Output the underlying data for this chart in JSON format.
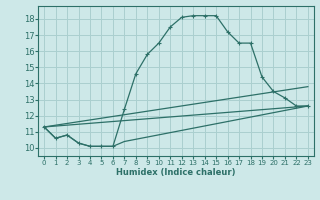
{
  "xlabel": "Humidex (Indice chaleur)",
  "xlim": [
    -0.5,
    23.5
  ],
  "ylim": [
    9.5,
    18.8
  ],
  "xticks": [
    0,
    1,
    2,
    3,
    4,
    5,
    6,
    7,
    8,
    9,
    10,
    11,
    12,
    13,
    14,
    15,
    16,
    17,
    18,
    19,
    20,
    21,
    22,
    23
  ],
  "yticks": [
    10,
    11,
    12,
    13,
    14,
    15,
    16,
    17,
    18
  ],
  "bg_color": "#cde8e8",
  "line_color": "#2d7068",
  "grid_color": "#aacfcf",
  "line1_x": [
    0,
    1,
    2,
    3,
    4,
    5,
    6,
    7,
    8,
    9,
    10,
    11,
    12,
    13,
    14,
    15,
    16,
    17,
    18,
    19,
    20,
    21,
    22,
    23
  ],
  "line1_y": [
    11.3,
    10.6,
    10.8,
    10.3,
    10.1,
    10.1,
    10.1,
    12.4,
    14.6,
    15.8,
    16.5,
    17.5,
    18.1,
    18.2,
    18.2,
    18.2,
    17.2,
    16.5,
    16.5,
    14.4,
    13.5,
    13.1,
    12.6,
    12.6
  ],
  "line2_x": [
    0,
    1,
    2,
    3,
    4,
    5,
    6,
    7,
    23
  ],
  "line2_y": [
    11.3,
    10.6,
    10.8,
    10.3,
    10.1,
    10.1,
    10.1,
    10.4,
    12.6
  ],
  "line3_x": [
    0,
    23
  ],
  "line3_y": [
    11.3,
    13.8
  ],
  "line4_x": [
    0,
    23
  ],
  "line4_y": [
    11.3,
    12.6
  ]
}
